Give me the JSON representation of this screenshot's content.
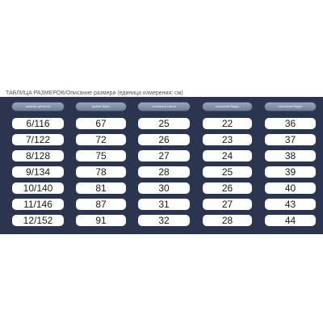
{
  "caption": "ТАБЛИЦА РАЗМЕРОВ/Описание размера (единица измерения: см)",
  "headers": [
    "размер детского",
    "длина брюк",
    "половина талии",
    "половина бедер",
    "половина бедер"
  ],
  "rows": [
    [
      "6/116",
      "67",
      "25",
      "22",
      "36"
    ],
    [
      "7/122",
      "72",
      "26",
      "23",
      "37"
    ],
    [
      "8/128",
      "75",
      "27",
      "24",
      "38"
    ],
    [
      "9/134",
      "78",
      "28",
      "25",
      "39"
    ],
    [
      "10/140",
      "81",
      "30",
      "26",
      "40"
    ],
    [
      "11/146",
      "87",
      "31",
      "27",
      "43"
    ],
    [
      "12/152",
      "91",
      "32",
      "28",
      "44"
    ]
  ],
  "colors": {
    "panel": "#2c3550",
    "cell": "#ffffff",
    "header_pill": "#8593ab"
  }
}
